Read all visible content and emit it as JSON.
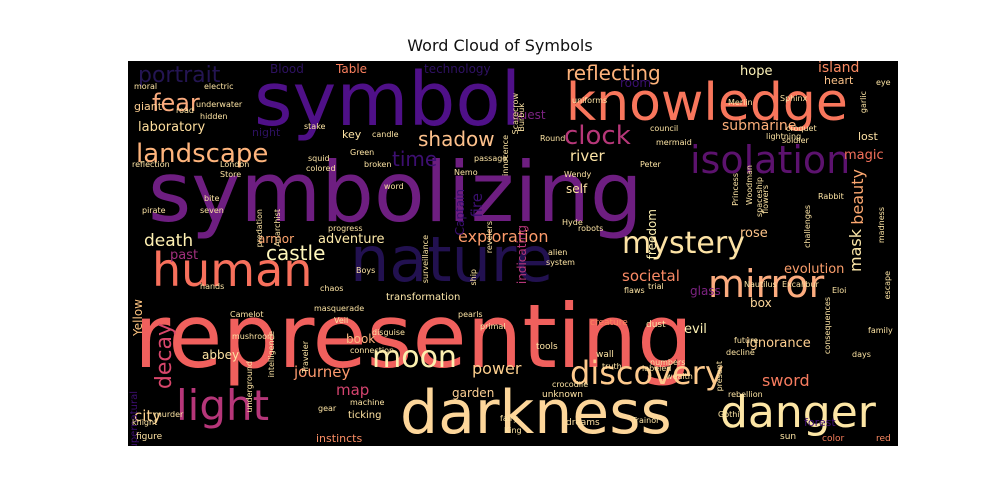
{
  "chart_data": {
    "type": "wordcloud",
    "title": "Word Cloud of Symbols",
    "colormap": "magma",
    "background": "#000000",
    "words": [
      {
        "text": "representing",
        "weight": 1.0,
        "color": "#f0605d"
      },
      {
        "text": "symbolizing",
        "weight": 0.92,
        "color": "#6e1e81"
      },
      {
        "text": "symbol",
        "weight": 0.82,
        "color": "#4f1088"
      },
      {
        "text": "darkness",
        "weight": 0.72,
        "color": "#fdd69a"
      },
      {
        "text": "nature",
        "weight": 0.7,
        "color": "#221150"
      },
      {
        "text": "knowledge",
        "weight": 0.6,
        "color": "#f8765c"
      },
      {
        "text": "human",
        "weight": 0.54,
        "color": "#f7705c"
      },
      {
        "text": "danger",
        "weight": 0.5,
        "color": "#fde6a5"
      },
      {
        "text": "light",
        "weight": 0.5,
        "color": "#b63679"
      },
      {
        "text": "mirror",
        "weight": 0.44,
        "color": "#fcac7f"
      },
      {
        "text": "isolation",
        "weight": 0.42,
        "color": "#5c126e"
      },
      {
        "text": "discovery",
        "weight": 0.38,
        "color": "#feca8d"
      },
      {
        "text": "mystery",
        "weight": 0.35,
        "color": "#fde3a5"
      },
      {
        "text": "moon",
        "weight": 0.35,
        "color": "#fcf0b0"
      },
      {
        "text": "landscape",
        "weight": 0.3,
        "color": "#feb47c"
      },
      {
        "text": "clock",
        "weight": 0.3,
        "color": "#b73779"
      },
      {
        "text": "fear",
        "weight": 0.28,
        "color": "#fbab7e"
      },
      {
        "text": "portrait",
        "weight": 0.25,
        "color": "#241552"
      },
      {
        "text": "reflecting",
        "weight": 0.24,
        "color": "#feb37b"
      },
      {
        "text": "decay",
        "weight": 0.24,
        "color": "#d8466b"
      },
      {
        "text": "shadow",
        "weight": 0.23,
        "color": "#fdc18c"
      },
      {
        "text": "time",
        "weight": 0.23,
        "color": "#3d0f71"
      },
      {
        "text": "castle",
        "weight": 0.23,
        "color": "#fef6bb"
      },
      {
        "text": "death",
        "weight": 0.2,
        "color": "#fef0b2"
      },
      {
        "text": "exploration",
        "weight": 0.19,
        "color": "#fd9b6a"
      },
      {
        "text": "beauty",
        "weight": 0.2,
        "color": "#fda870"
      },
      {
        "text": "mask",
        "weight": 0.2,
        "color": "#fde7a9"
      },
      {
        "text": "sword",
        "weight": 0.19,
        "color": "#f77c5f"
      },
      {
        "text": "power",
        "weight": 0.19,
        "color": "#fed08e"
      },
      {
        "text": "journey",
        "weight": 0.18,
        "color": "#fc996d"
      },
      {
        "text": "river",
        "weight": 0.18,
        "color": "#fde4a6"
      },
      {
        "text": "societal",
        "weight": 0.17,
        "color": "#fa8a65"
      },
      {
        "text": "city",
        "weight": 0.17,
        "color": "#fdd190"
      },
      {
        "text": "map",
        "weight": 0.17,
        "color": "#d3436e"
      },
      {
        "text": "fire",
        "weight": 0.17,
        "color": "#3b0f70"
      },
      {
        "text": "submarine",
        "weight": 0.16,
        "color": "#feb07a"
      },
      {
        "text": "island",
        "weight": 0.16,
        "color": "#fc8a62"
      },
      {
        "text": "Island",
        "weight": 0.15,
        "color": "#fc8a62"
      },
      {
        "text": "laboratory",
        "weight": 0.15,
        "color": "#fede9d"
      },
      {
        "text": "adventure",
        "weight": 0.15,
        "color": "#feeaa9"
      },
      {
        "text": "magic",
        "weight": 0.14,
        "color": "#f4715b"
      },
      {
        "text": "evolution",
        "weight": 0.14,
        "color": "#fc9f6c"
      },
      {
        "text": "hope",
        "weight": 0.14,
        "color": "#fff4ba"
      },
      {
        "text": "rose",
        "weight": 0.14,
        "color": "#fdc48a"
      },
      {
        "text": "evil",
        "weight": 0.14,
        "color": "#fef2b5"
      },
      {
        "text": "ignorance",
        "weight": 0.14,
        "color": "#fecf91"
      },
      {
        "text": "past",
        "weight": 0.14,
        "color": "#a1307e"
      },
      {
        "text": "armor",
        "weight": 0.13,
        "color": "#fea46e"
      },
      {
        "text": "abbey",
        "weight": 0.13,
        "color": "#fee3a2"
      },
      {
        "text": "garden",
        "weight": 0.13,
        "color": "#fdd094"
      },
      {
        "text": "self",
        "weight": 0.13,
        "color": "#fde1a2"
      },
      {
        "text": "freedom",
        "weight": 0.13,
        "color": "#fef1b3"
      },
      {
        "text": "book",
        "weight": 0.13,
        "color": "#fdb680"
      },
      {
        "text": "box",
        "weight": 0.13,
        "color": "#fdd79b"
      },
      {
        "text": "glass",
        "weight": 0.13,
        "color": "#7d2382"
      },
      {
        "text": "Yellow",
        "weight": 0.12,
        "color": "#fcc27f"
      },
      {
        "text": "Blood",
        "weight": 0.12,
        "color": "#2d1160"
      },
      {
        "text": "Table",
        "weight": 0.12,
        "color": "#fa7f5e"
      },
      {
        "text": "technology",
        "weight": 0.12,
        "color": "#2f1163"
      },
      {
        "text": "room",
        "weight": 0.12,
        "color": "#3a0f6f"
      },
      {
        "text": "Captain",
        "weight": 0.12,
        "color": "#3b0f70"
      },
      {
        "text": "indicating",
        "weight": 0.12,
        "color": "#b5367a"
      },
      {
        "text": "quest",
        "weight": 0.12,
        "color": "#7c2382"
      },
      {
        "text": "giant",
        "weight": 0.12,
        "color": "#fecf92"
      },
      {
        "text": "key",
        "weight": 0.11,
        "color": "#fee4a5"
      },
      {
        "text": "night",
        "weight": 0.11,
        "color": "#2d1160"
      },
      {
        "text": "heart",
        "weight": 0.1,
        "color": "#fec48a"
      },
      {
        "text": "lost",
        "weight": 0.11,
        "color": "#fde1a5"
      },
      {
        "text": "instincts",
        "weight": 0.1,
        "color": "#fb8d64"
      },
      {
        "text": "forest",
        "weight": 0.1,
        "color": "#3e0f72"
      },
      {
        "text": "transformation",
        "weight": 0.09,
        "color": "#fde8ab"
      },
      {
        "text": "supernatural",
        "weight": 0.09,
        "color": "#3e0f72"
      },
      {
        "text": "ticking",
        "weight": 0.09,
        "color": "#fee1a0"
      },
      {
        "text": "figure",
        "weight": 0.08,
        "color": "#fde2a3"
      },
      {
        "text": "dreams",
        "weight": 0.08,
        "color": "#fde1a2"
      },
      {
        "text": "unknown",
        "weight": 0.08,
        "color": "#fde2a3"
      },
      {
        "text": "creature",
        "weight": 0.08,
        "color": "#fb8660"
      },
      {
        "text": "tools",
        "weight": 0.08,
        "color": "#fde4a4"
      },
      {
        "text": "wall",
        "weight": 0.08,
        "color": "#fde4a4"
      },
      {
        "text": "sun",
        "weight": 0.08,
        "color": "#fde4a4"
      },
      {
        "text": "color",
        "weight": 0.08,
        "color": "#f57d5a"
      },
      {
        "text": "red",
        "weight": 0.08,
        "color": "#fc8a62"
      },
      {
        "text": "dust",
        "weight": 0.08,
        "color": "#fde4a4"
      },
      {
        "text": "Excalibur",
        "weight": 0.07,
        "color": "#fee1a1"
      },
      {
        "text": "Gothic",
        "weight": 0.07,
        "color": "#fde4a4"
      },
      {
        "text": "Trainor",
        "weight": 0.07,
        "color": "#fde4a4"
      },
      {
        "text": "machine",
        "weight": 0.07,
        "color": "#fde4a4"
      },
      {
        "text": "gear",
        "weight": 0.07,
        "color": "#fde4a4"
      },
      {
        "text": "knight",
        "weight": 0.07,
        "color": "#fde4a4"
      },
      {
        "text": "mushroom",
        "weight": 0.07,
        "color": "#fde4a4"
      },
      {
        "text": "hands",
        "weight": 0.07,
        "color": "#fde4a4"
      },
      {
        "text": "Veil",
        "weight": 0.07,
        "color": "#fde4a4"
      },
      {
        "text": "disguise",
        "weight": 0.07,
        "color": "#fde4a4"
      },
      {
        "text": "masquerade",
        "weight": 0.07,
        "color": "#fde4a4"
      },
      {
        "text": "chaos",
        "weight": 0.07,
        "color": "#fde4a4"
      },
      {
        "text": "primal",
        "weight": 0.07,
        "color": "#fde4a4"
      },
      {
        "text": "trial",
        "weight": 0.07,
        "color": "#fde4a4"
      },
      {
        "text": "Nautilus",
        "weight": 0.07,
        "color": "#fde4a4"
      },
      {
        "text": "Eloi",
        "weight": 0.07,
        "color": "#fde4a4"
      },
      {
        "text": "future",
        "weight": 0.07,
        "color": "#fde4a4"
      },
      {
        "text": "decline",
        "weight": 0.07,
        "color": "#fde4a4"
      },
      {
        "text": "present",
        "weight": 0.07,
        "color": "#fde4a4"
      },
      {
        "text": "rebellion",
        "weight": 0.07,
        "color": "#fde4a4"
      },
      {
        "text": "truth",
        "weight": 0.07,
        "color": "#fde4a4"
      },
      {
        "text": "wealth",
        "weight": 0.07,
        "color": "#fde4a4"
      },
      {
        "text": "fairy",
        "weight": 0.07,
        "color": "#fde4a4"
      },
      {
        "text": "King",
        "weight": 0.07,
        "color": "#fde4a4"
      },
      {
        "text": "crocodile",
        "weight": 0.07,
        "color": "#fde4a4"
      },
      {
        "text": "labeled",
        "weight": 0.07,
        "color": "#fde4a4"
      },
      {
        "text": "Round",
        "weight": 0.07,
        "color": "#fde4a4"
      },
      {
        "text": "Scarecrow",
        "weight": 0.07,
        "color": "#fde4a4"
      },
      {
        "text": "uniforms",
        "weight": 0.07,
        "color": "#fde4a4"
      },
      {
        "text": "Merlin",
        "weight": 0.07,
        "color": "#fde4a4"
      },
      {
        "text": "Sphinx",
        "weight": 0.07,
        "color": "#fde4a4"
      },
      {
        "text": "eye",
        "weight": 0.07,
        "color": "#fde4a4"
      },
      {
        "text": "garlic",
        "weight": 0.07,
        "color": "#fde4a4"
      },
      {
        "text": "lightning",
        "weight": 0.07,
        "color": "#fde4a4"
      },
      {
        "text": "croquet",
        "weight": 0.07,
        "color": "#fde4a4"
      },
      {
        "text": "soldier",
        "weight": 0.07,
        "color": "#fde4a4"
      },
      {
        "text": "council",
        "weight": 0.07,
        "color": "#fde4a4"
      },
      {
        "text": "mermaid",
        "weight": 0.07,
        "color": "#fde4a4"
      },
      {
        "text": "Rabbit",
        "weight": 0.07,
        "color": "#fde4a4"
      },
      {
        "text": "Princess",
        "weight": 0.07,
        "color": "#fde4a4"
      },
      {
        "text": "Woodman",
        "weight": 0.07,
        "color": "#fde4a4"
      },
      {
        "text": "spaceship",
        "weight": 0.07,
        "color": "#fde4a4"
      },
      {
        "text": "challenges",
        "weight": 0.07,
        "color": "#fde4a4"
      },
      {
        "text": "madness",
        "weight": 0.07,
        "color": "#fde4a4"
      },
      {
        "text": "escape",
        "weight": 0.07,
        "color": "#fde4a4"
      },
      {
        "text": "family",
        "weight": 0.07,
        "color": "#fde4a4"
      },
      {
        "text": "days",
        "weight": 0.07,
        "color": "#fde4a4"
      },
      {
        "text": "consequences",
        "weight": 0.07,
        "color": "#fde4a4"
      },
      {
        "text": "flaws",
        "weight": 0.07,
        "color": "#fde4a4"
      },
      {
        "text": "alien",
        "weight": 0.07,
        "color": "#fde4a4"
      },
      {
        "text": "system",
        "weight": 0.07,
        "color": "#fde4a4"
      },
      {
        "text": "robots",
        "weight": 0.07,
        "color": "#fde4a4"
      },
      {
        "text": "Hyde",
        "weight": 0.07,
        "color": "#fde4a4"
      },
      {
        "text": "Wendy",
        "weight": 0.07,
        "color": "#fde4a4"
      },
      {
        "text": "revelers",
        "weight": 0.07,
        "color": "#fde4a4"
      },
      {
        "text": "Peter",
        "weight": 0.07,
        "color": "#fde4a4"
      },
      {
        "text": "Nemo",
        "weight": 0.07,
        "color": "#fde4a4"
      },
      {
        "text": "passage",
        "weight": 0.07,
        "color": "#fde4a4"
      },
      {
        "text": "surveillance",
        "weight": 0.07,
        "color": "#fde4a4"
      },
      {
        "text": "broken",
        "weight": 0.07,
        "color": "#fde4a4"
      },
      {
        "text": "Green",
        "weight": 0.07,
        "color": "#fde4a4"
      },
      {
        "text": "innocence",
        "weight": 0.07,
        "color": "#fde4a4"
      },
      {
        "text": "Burbuk",
        "weight": 0.07,
        "color": "#fde4a4"
      },
      {
        "text": "word",
        "weight": 0.07,
        "color": "#fde4a4"
      },
      {
        "text": "progress",
        "weight": 0.07,
        "color": "#fde4a4"
      },
      {
        "text": "Anarchist",
        "weight": 0.07,
        "color": "#fde4a4"
      },
      {
        "text": "predation",
        "weight": 0.07,
        "color": "#fde4a4"
      },
      {
        "text": "stake",
        "weight": 0.07,
        "color": "#fde4a4"
      },
      {
        "text": "squid",
        "weight": 0.07,
        "color": "#fde4a4"
      },
      {
        "text": "candle",
        "weight": 0.07,
        "color": "#fde4a4"
      },
      {
        "text": "colored",
        "weight": 0.07,
        "color": "#fde4a4"
      },
      {
        "text": "Store",
        "weight": 0.07,
        "color": "#fde4a4"
      },
      {
        "text": "London",
        "weight": 0.07,
        "color": "#fde4a4"
      },
      {
        "text": "reflection",
        "weight": 0.07,
        "color": "#fde4a4"
      },
      {
        "text": "bite",
        "weight": 0.07,
        "color": "#fde4a4"
      },
      {
        "text": "seven",
        "weight": 0.07,
        "color": "#fde4a4"
      },
      {
        "text": "pirate",
        "weight": 0.07,
        "color": "#fde4a4"
      },
      {
        "text": "Camelot",
        "weight": 0.07,
        "color": "#fde4a4"
      },
      {
        "text": "Boys",
        "weight": 0.07,
        "color": "#fde4a4"
      },
      {
        "text": "connection",
        "weight": 0.07,
        "color": "#fde4a4"
      },
      {
        "text": "intelligence",
        "weight": 0.07,
        "color": "#fde4a4"
      },
      {
        "text": "underground",
        "weight": 0.07,
        "color": "#fde4a4"
      },
      {
        "text": "Traveler",
        "weight": 0.07,
        "color": "#fde4a4"
      },
      {
        "text": "murder",
        "weight": 0.07,
        "color": "#fde4a4"
      },
      {
        "text": "moral",
        "weight": 0.07,
        "color": "#fde4a4"
      },
      {
        "text": "electric",
        "weight": 0.07,
        "color": "#fde4a4"
      },
      {
        "text": "road",
        "weight": 0.07,
        "color": "#fde4a4"
      },
      {
        "text": "underwater",
        "weight": 0.07,
        "color": "#fde4a4"
      },
      {
        "text": "hidden",
        "weight": 0.07,
        "color": "#fde4a4"
      },
      {
        "text": "numbers",
        "weight": 0.07,
        "color": "#fde4a4"
      },
      {
        "text": "pearls",
        "weight": 0.07,
        "color": "#fde4a4"
      },
      {
        "text": "ship",
        "weight": 0.07,
        "color": "#fde4a4"
      },
      {
        "text": "flowers",
        "weight": 0.07,
        "color": "#fde4a4"
      }
    ]
  }
}
